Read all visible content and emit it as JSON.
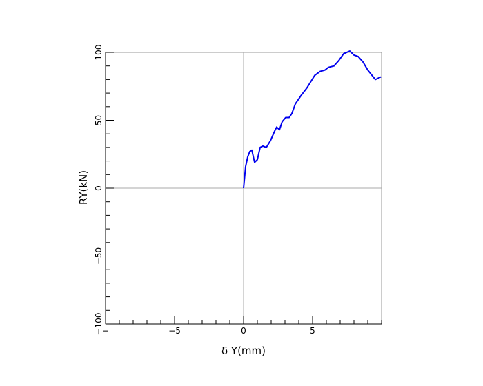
{
  "chart_data": {
    "type": "line",
    "x_label": "δ Y(mm)",
    "y_label": "RY(kN)",
    "series": [
      {
        "name": "RY",
        "color": "#0000ee",
        "x": [
          0,
          0.15,
          0.3,
          0.45,
          0.6,
          0.8,
          1.0,
          1.2,
          1.4,
          1.65,
          1.95,
          2.25,
          2.4,
          2.6,
          2.8,
          3.05,
          3.3,
          3.5,
          3.75,
          4.15,
          4.6,
          5.15,
          5.55,
          5.9,
          6.15,
          6.55,
          6.9,
          7.25,
          7.7,
          8.0,
          8.3,
          8.65,
          9.0,
          9.55,
          9.95
        ],
        "values": [
          0,
          16,
          23,
          27,
          28,
          19,
          21,
          30,
          31,
          30,
          35,
          42,
          45,
          43,
          49,
          52,
          52,
          55,
          62,
          68,
          74,
          83,
          86,
          87,
          89,
          90,
          94,
          99,
          101,
          98,
          97,
          93,
          87,
          80,
          82
        ]
      }
    ],
    "xlim": [
      -10,
      10
    ],
    "ylim": [
      -100,
      100
    ],
    "xticks": [
      {
        "value": -10,
        "label": "−"
      },
      {
        "value": -5,
        "label": "−5"
      },
      0,
      5
    ],
    "yticks": [
      {
        "value": -100,
        "label": "−100"
      },
      {
        "value": -50,
        "label": "−50"
      },
      0,
      50,
      100
    ],
    "xminorticks": [
      -10,
      -9,
      -8,
      -7,
      -6,
      -5,
      -4,
      -3,
      -2,
      -1,
      0,
      1,
      2,
      3,
      4,
      5,
      6,
      7,
      8,
      9,
      10
    ],
    "yminorticks": [
      -100,
      -90,
      -80,
      -70,
      -60,
      -50,
      -40,
      -30,
      -20,
      -10,
      0,
      10,
      20,
      30,
      40,
      50,
      60,
      70,
      80,
      90,
      100
    ],
    "zero_lines": true
  }
}
